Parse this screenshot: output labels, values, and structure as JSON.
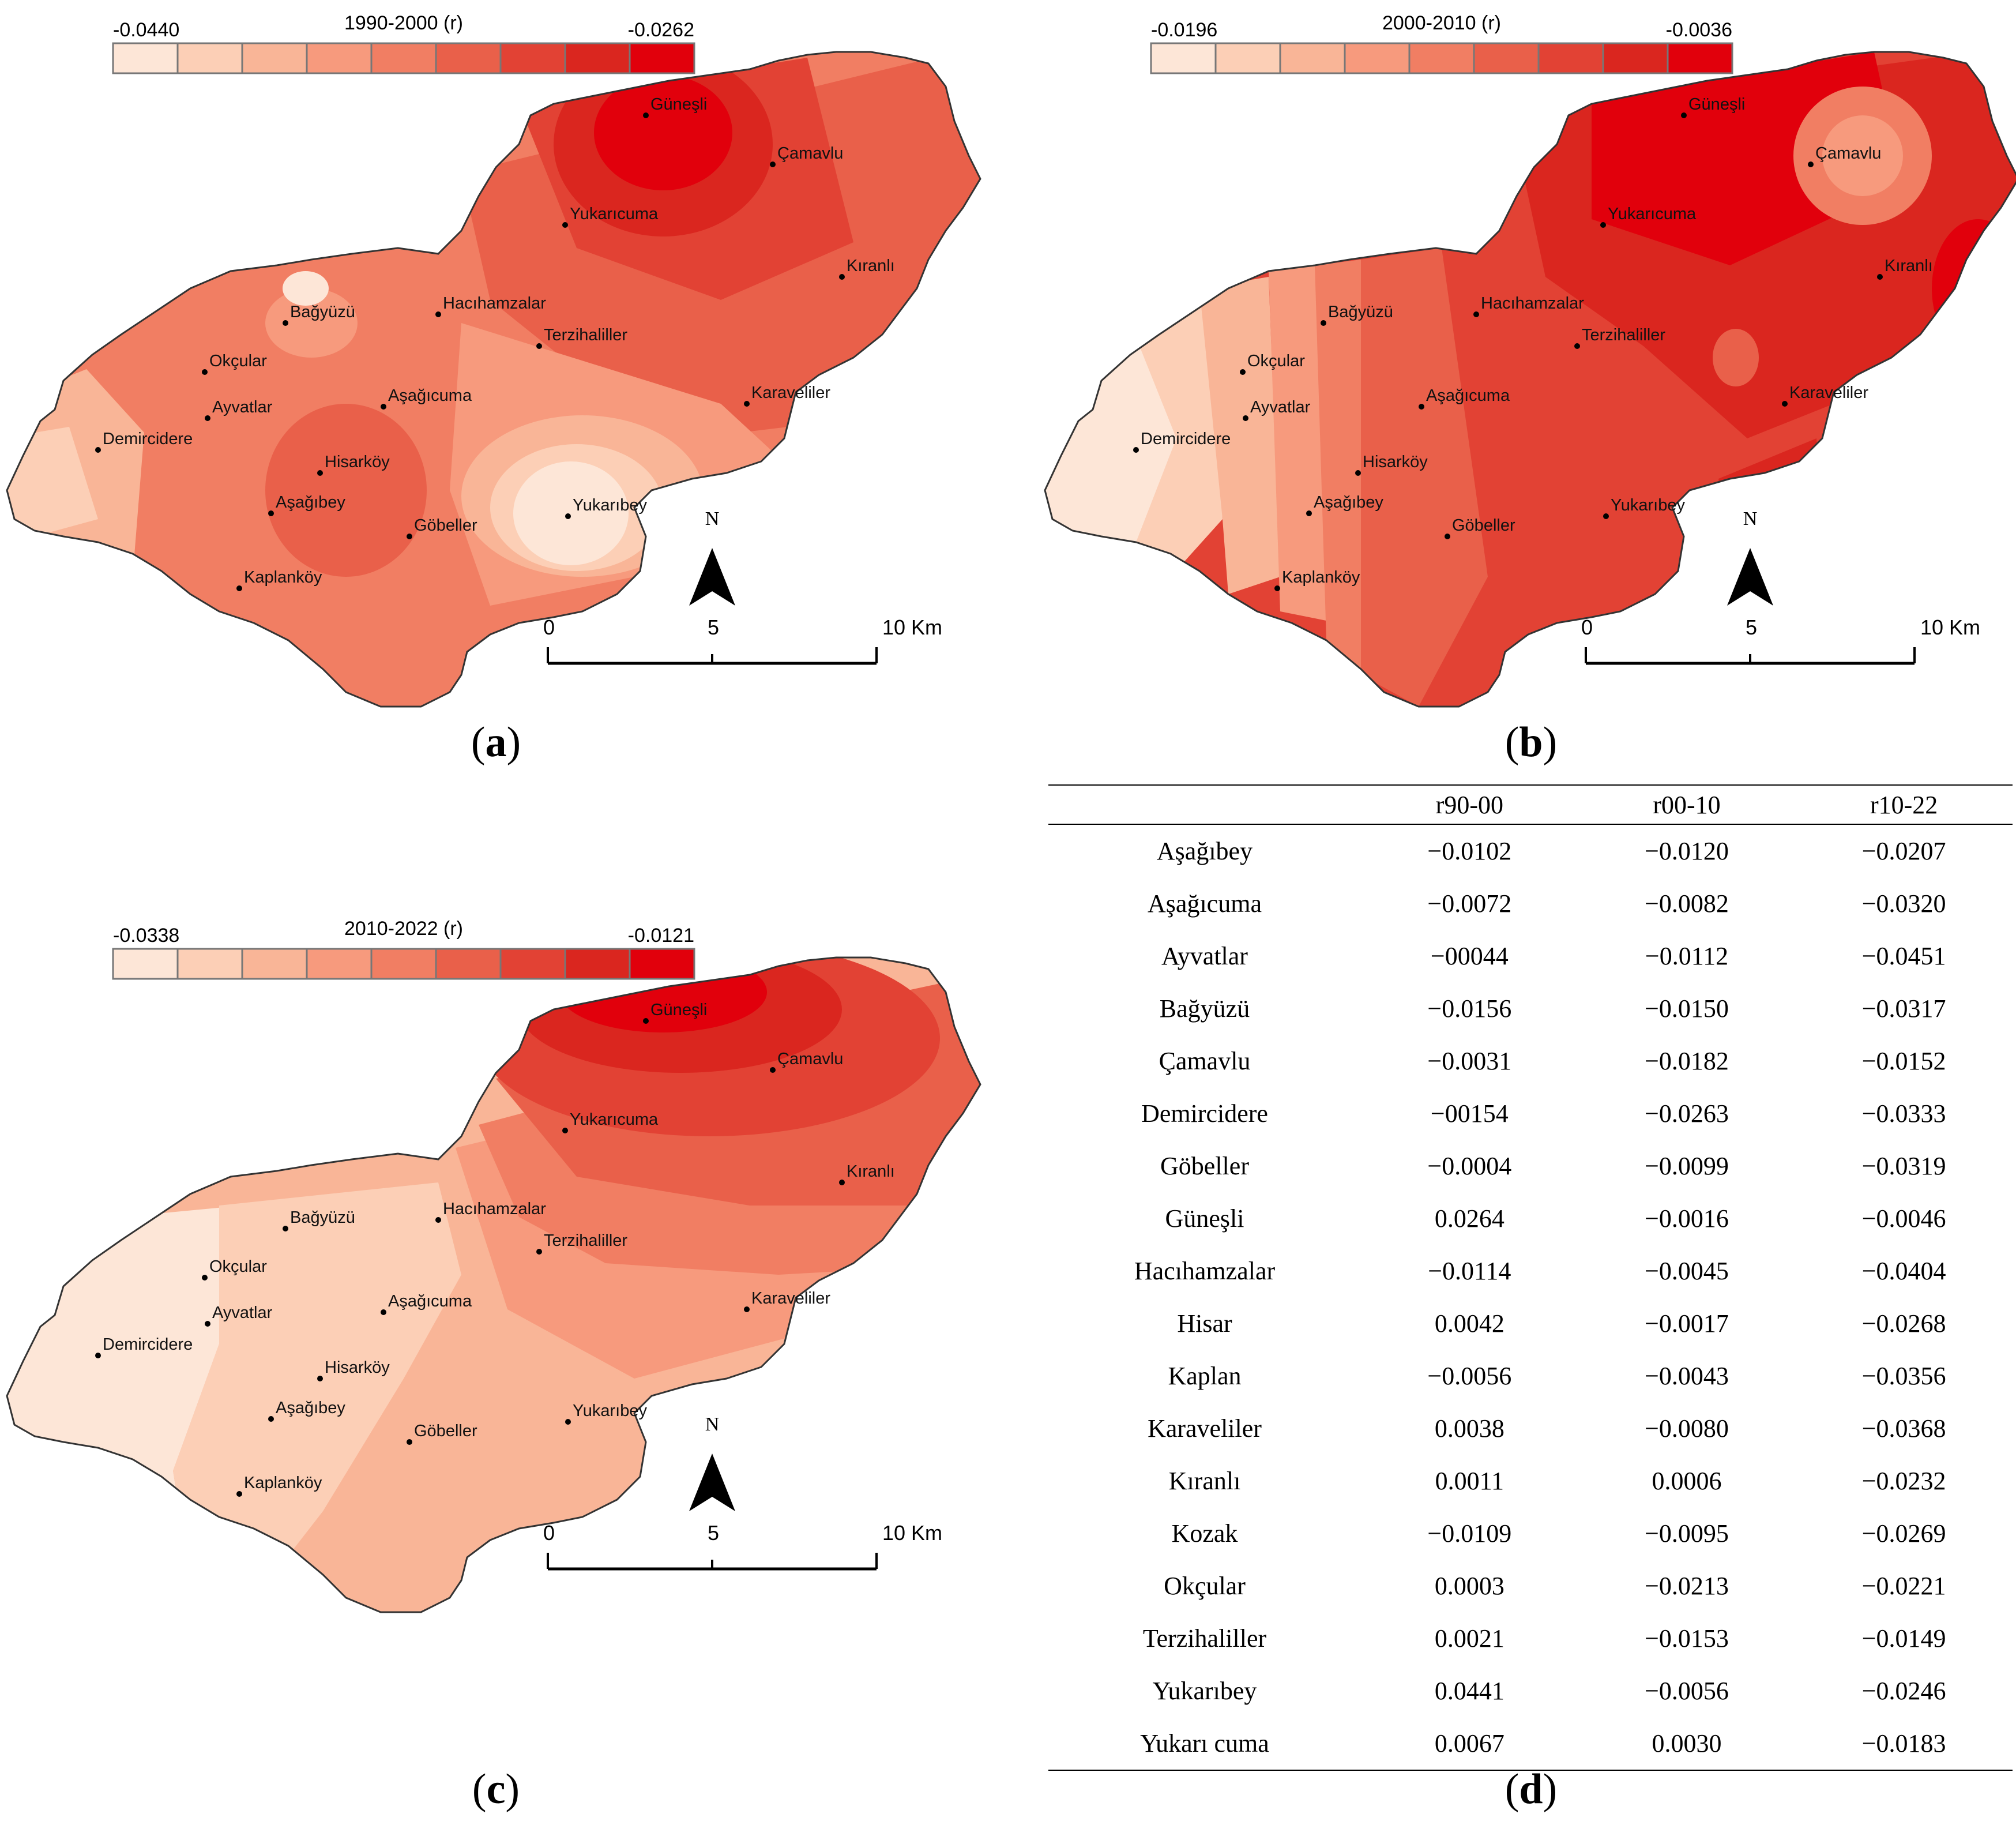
{
  "maps": [
    {
      "id": "a",
      "caption": "a",
      "legend": {
        "min": "-0.0440",
        "max": "-0.0262",
        "title": "1990-2000  (r)",
        "colors": [
          "#fde6d7",
          "#fccfb6",
          "#f9b597",
          "#f79a7d",
          "#f17e63",
          "#e9604a",
          "#e24234",
          "#da261f",
          "#e1000c"
        ]
      },
      "scale": {
        "labels": [
          "0",
          "5",
          "10 Km"
        ]
      },
      "north": "N",
      "places": [
        "Güneşli",
        "Çamavlu",
        "Yukarıcuma",
        "Kıranlı",
        "Bağyüzü",
        "Hacıhamzalar",
        "Terzihaliller",
        "Okçular",
        "Aşağıcuma",
        "Karaveliler",
        "Ayvatlar",
        "Demircidere",
        "Hisarköy",
        "Aşağıbey",
        "Yukarıbey",
        "Göbeller",
        "Kaplanköy"
      ]
    },
    {
      "id": "b",
      "caption": "b",
      "legend": {
        "min": "-0.0196",
        "max": "-0.0036",
        "title": "2000-2010  (r)",
        "colors": [
          "#fde6d7",
          "#fccfb6",
          "#f9b597",
          "#f79a7d",
          "#f17e63",
          "#e9604a",
          "#e24234",
          "#da261f",
          "#e1000c"
        ]
      },
      "scale": {
        "labels": [
          "0",
          "5",
          "10 Km"
        ]
      },
      "north": "N",
      "places": [
        "Güneşli",
        "Çamavlu",
        "Yukarıcuma",
        "Kıranlı",
        "Bağyüzü",
        "Hacıhamzalar",
        "Terzihaliller",
        "Okçular",
        "Aşağıcuma",
        "Karaveliler",
        "Ayvatlar",
        "Demircidere",
        "Hisarköy",
        "Aşağıbey",
        "Yukarıbey",
        "Göbeller",
        "Kaplanköy"
      ]
    },
    {
      "id": "c",
      "caption": "c",
      "legend": {
        "min": "-0.0338",
        "max": "-0.0121",
        "title": "2010-2022  (r)",
        "colors": [
          "#fde6d7",
          "#fccfb6",
          "#f9b597",
          "#f79a7d",
          "#f17e63",
          "#e9604a",
          "#e24234",
          "#da261f",
          "#e1000c"
        ]
      },
      "scale": {
        "labels": [
          "0",
          "5",
          "10 Km"
        ]
      },
      "north": "N",
      "places": [
        "Güneşli",
        "Çamavlu",
        "Yukarıcuma",
        "Kıranlı",
        "Bağyüzü",
        "Hacıhamzalar",
        "Terzihaliller",
        "Okçular",
        "Aşağıcuma",
        "Karaveliler",
        "Ayvatlar",
        "Demircidere",
        "Hisarköy",
        "Aşağıbey",
        "Yukarıbey",
        "Göbeller",
        "Kaplanköy"
      ]
    }
  ],
  "table": {
    "caption": "d",
    "headers": [
      "",
      "r90-00",
      "r00-10",
      "r10-22"
    ],
    "rows": [
      [
        "Aşağıbey",
        "−0.0102",
        "−0.0120",
        "−0.0207"
      ],
      [
        "Aşağıcuma",
        "−0.0072",
        "−0.0082",
        "−0.0320"
      ],
      [
        "Ayvatlar",
        "−00044",
        "−0.0112",
        "−0.0451"
      ],
      [
        "Bağyüzü",
        "−0.0156",
        "−0.0150",
        "−0.0317"
      ],
      [
        "Çamavlu",
        "−0.0031",
        "−0.0182",
        "−0.0152"
      ],
      [
        "Demircidere",
        "−00154",
        "−0.0263",
        "−0.0333"
      ],
      [
        "Göbeller",
        "−0.0004",
        "−0.0099",
        "−0.0319"
      ],
      [
        "Güneşli",
        "0.0264",
        "−0.0016",
        "−0.0046"
      ],
      [
        "Hacıhamzalar",
        "−0.0114",
        "−0.0045",
        "−0.0404"
      ],
      [
        "Hisar",
        "0.0042",
        "−0.0017",
        "−0.0268"
      ],
      [
        "Kaplan",
        "−0.0056",
        "−0.0043",
        "−0.0356"
      ],
      [
        "Karaveliler",
        "0.0038",
        "−0.0080",
        "−0.0368"
      ],
      [
        "Kıranlı",
        "0.0011",
        "0.0006",
        "−0.0232"
      ],
      [
        "Kozak",
        "−0.0109",
        "−0.0095",
        "−0.0269"
      ],
      [
        "Okçular",
        "0.0003",
        "−0.0213",
        "−0.0221"
      ],
      [
        "Terzihaliller",
        "0.0021",
        "−0.0153",
        "−0.0149"
      ],
      [
        "Yukarıbey",
        "0.0441",
        "−0.0056",
        "−0.0246"
      ],
      [
        "Yukarı cuma",
        "0.0067",
        "0.0030",
        "−0.0183"
      ]
    ]
  }
}
